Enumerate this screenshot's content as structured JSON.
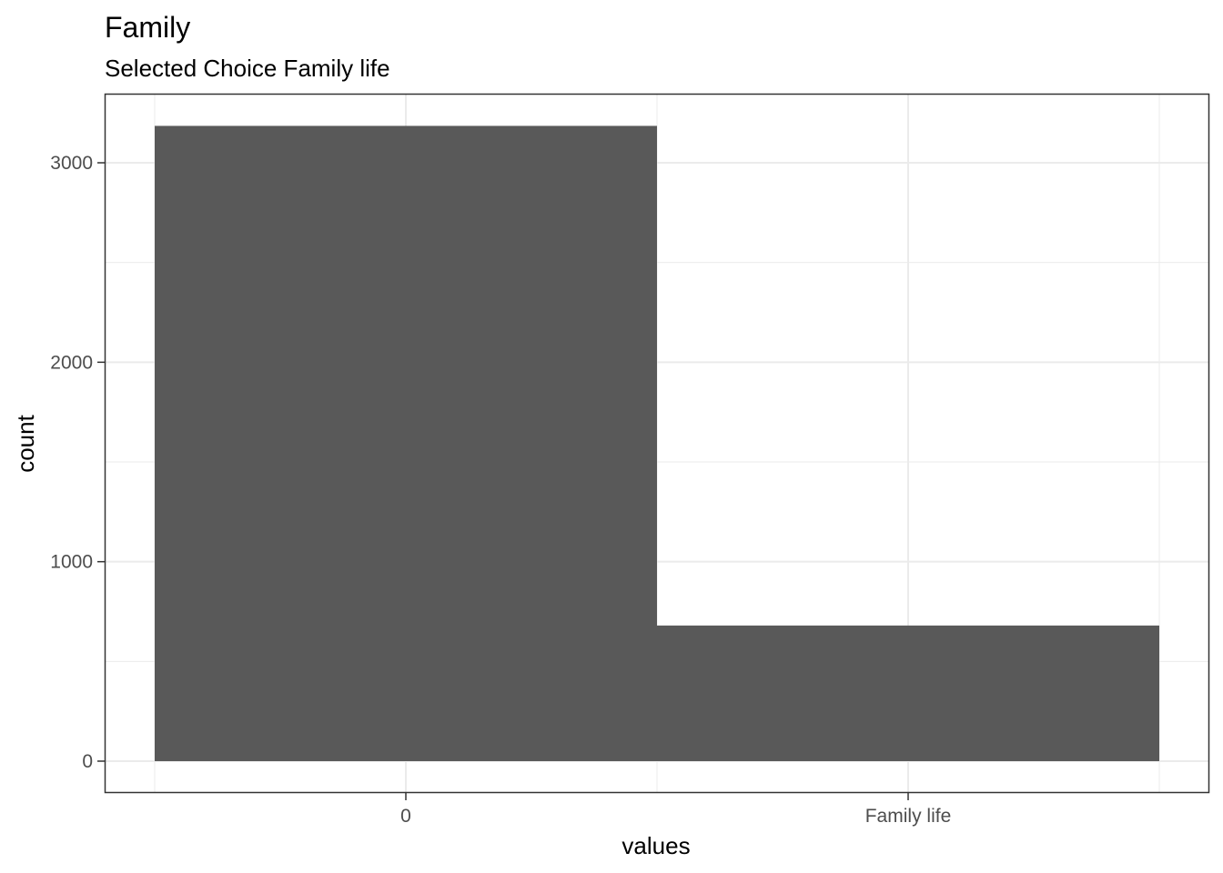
{
  "chart_data": {
    "type": "bar",
    "title": "Family",
    "subtitle": "Selected Choice Family life",
    "xlabel": "values",
    "ylabel": "count",
    "categories": [
      "0",
      "Family life"
    ],
    "values": [
      3185,
      680
    ],
    "ylim": [
      0,
      3200
    ],
    "yticks": [
      0,
      1000,
      2000,
      3000
    ],
    "ytick_labels": [
      "0",
      "1000",
      "2000",
      "3000"
    ],
    "grid": true,
    "bar_color": "#595959",
    "panel_border_color": "#333333",
    "grid_color": "#ebebeb"
  }
}
